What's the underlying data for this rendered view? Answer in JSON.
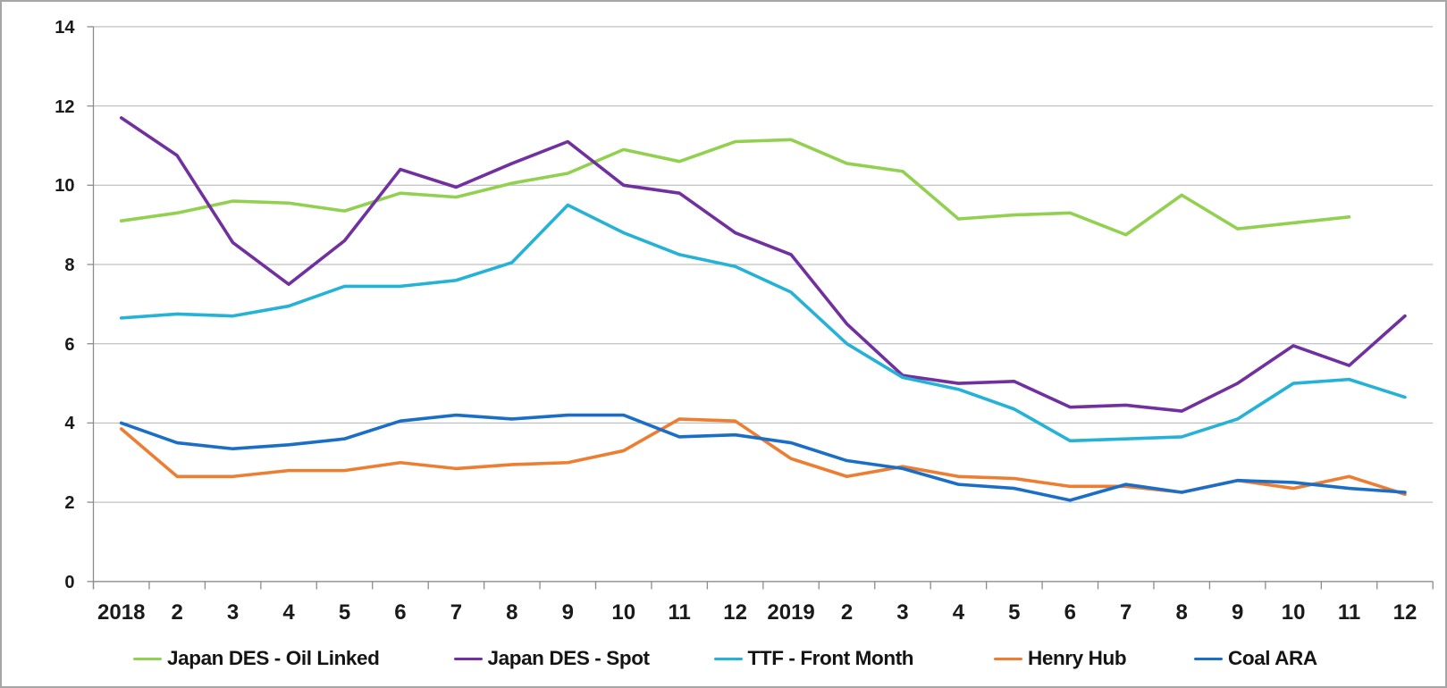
{
  "chart_data": {
    "type": "line",
    "title": "",
    "categories": [
      "2018",
      "2",
      "3",
      "4",
      "5",
      "6",
      "7",
      "8",
      "9",
      "10",
      "11",
      "12",
      "2019",
      "2",
      "3",
      "4",
      "5",
      "6",
      "7",
      "8",
      "9",
      "10",
      "11",
      "12"
    ],
    "x_axis": {
      "kind": "category",
      "tick_marks": "between-categories"
    },
    "y_axis": {
      "min": 0,
      "max": 14,
      "tick_step": 2,
      "tick_labels": [
        "0",
        "2",
        "4",
        "6",
        "8",
        "10",
        "12",
        "14"
      ]
    },
    "grid": true,
    "legend_position": "bottom",
    "series": [
      {
        "name": "Japan DES - Oil Linked",
        "color": "#92d050",
        "values": [
          9.1,
          9.3,
          9.6,
          9.55,
          9.35,
          9.8,
          9.7,
          10.05,
          10.3,
          10.9,
          10.6,
          11.1,
          11.15,
          10.55,
          10.35,
          9.15,
          9.25,
          9.3,
          8.75,
          9.75,
          8.9,
          9.05,
          9.2,
          null
        ]
      },
      {
        "name": "Japan DES - Spot",
        "color": "#7030a0",
        "values": [
          11.7,
          10.75,
          8.55,
          7.5,
          8.6,
          10.4,
          9.95,
          10.55,
          11.1,
          10.0,
          9.8,
          8.8,
          8.25,
          6.5,
          5.2,
          5.0,
          5.05,
          4.4,
          4.45,
          4.3,
          5.0,
          5.95,
          5.45,
          6.7
        ]
      },
      {
        "name": "TTF - Front Month",
        "color": "#24b2d6",
        "values": [
          6.65,
          6.75,
          6.7,
          6.95,
          7.45,
          7.45,
          7.6,
          8.05,
          9.5,
          8.8,
          8.25,
          7.95,
          7.3,
          6.0,
          5.15,
          4.85,
          4.35,
          3.55,
          3.6,
          3.65,
          4.1,
          5.0,
          5.1,
          4.65
        ]
      },
      {
        "name": "Henry Hub",
        "color": "#ed7d31",
        "values": [
          3.85,
          2.65,
          2.65,
          2.8,
          2.8,
          3.0,
          2.85,
          2.95,
          3.0,
          3.3,
          4.1,
          4.05,
          3.1,
          2.65,
          2.9,
          2.65,
          2.6,
          2.4,
          2.4,
          2.25,
          2.55,
          2.35,
          2.65,
          2.2
        ]
      },
      {
        "name": "Coal ARA",
        "color": "#1b6ec8",
        "values": [
          4.0,
          3.5,
          3.35,
          3.45,
          3.6,
          4.05,
          4.2,
          4.1,
          4.2,
          4.2,
          3.65,
          3.7,
          3.5,
          3.05,
          2.85,
          2.45,
          2.35,
          2.05,
          2.45,
          2.25,
          2.55,
          2.5,
          2.35,
          2.25
        ]
      }
    ]
  },
  "colors": {
    "background": "#ffffff",
    "border": "#a6a6a6",
    "gridline": "#b2b2b2",
    "axis": "#8c8c8c",
    "tick": "#8c8c8c",
    "label_text": "#1a1a1a"
  }
}
